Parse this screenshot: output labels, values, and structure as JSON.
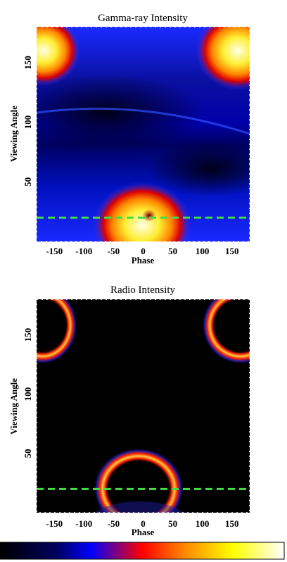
{
  "chart_data": [
    {
      "type": "heatmap",
      "title": "Gamma-ray Intensity",
      "xlabel": "Phase",
      "ylabel": "Viewing Angle",
      "xlim": [
        -180,
        180
      ],
      "ylim": [
        0,
        180
      ],
      "xticks": [
        "-150",
        "-100",
        "-50",
        "0",
        "50",
        "100",
        "150"
      ],
      "yticks": [
        "50",
        "100",
        "150"
      ],
      "reference_line": {
        "y": 20,
        "color": "#44dd44",
        "style": "dashed"
      },
      "features": [
        {
          "kind": "bright-region",
          "phase": -10,
          "viewing_angle": 20,
          "note": "central peak, dark spot near phase 10"
        },
        {
          "kind": "bright-region",
          "phase": -175,
          "viewing_angle": 162
        },
        {
          "kind": "bright-region",
          "phase": 170,
          "viewing_angle": 162
        },
        {
          "kind": "faint-ridge",
          "viewing_angle_range": [
            80,
            110
          ]
        }
      ]
    },
    {
      "type": "heatmap",
      "title": "Radio Intensity",
      "xlabel": "Phase",
      "ylabel": "Viewing Angle",
      "xlim": [
        -180,
        180
      ],
      "ylim": [
        0,
        180
      ],
      "xticks": [
        "-150",
        "-100",
        "-50",
        "0",
        "50",
        "100",
        "150"
      ],
      "yticks": [
        "50",
        "100",
        "150"
      ],
      "reference_line": {
        "y": 20,
        "color": "#44dd44",
        "style": "dashed"
      },
      "features": [
        {
          "kind": "ring",
          "phase": -10,
          "viewing_angle": 25
        },
        {
          "kind": "ring",
          "phase": -175,
          "viewing_angle": 158
        },
        {
          "kind": "ring",
          "phase": 175,
          "viewing_angle": 158
        }
      ]
    }
  ],
  "colorbar": {
    "stops": [
      "#000000",
      "#000060",
      "#0000ff",
      "#ff0000",
      "#ff8800",
      "#ffff00",
      "#ffffff"
    ]
  }
}
